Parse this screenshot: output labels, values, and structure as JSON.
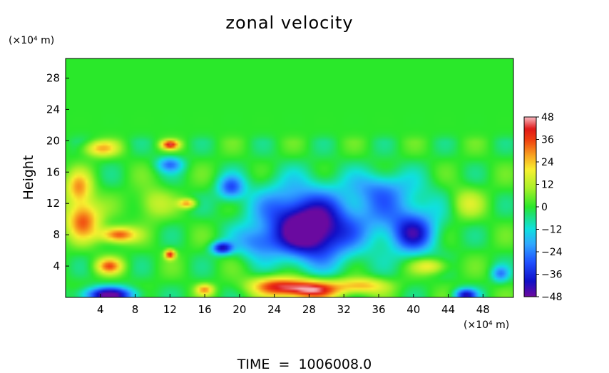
{
  "chart_data": {
    "type": "heatmap",
    "title": "zonal velocity",
    "ylabel": "Height",
    "y_unit": "(×10⁴ m)",
    "x_unit": "(×10⁴ m)",
    "footer": "TIME  =  1006008.0",
    "xlim": [
      0,
      51.5
    ],
    "ylim": [
      0,
      30.5
    ],
    "x_ticks": [
      4,
      8,
      12,
      16,
      20,
      24,
      28,
      32,
      36,
      40,
      44,
      48
    ],
    "y_ticks": [
      4,
      8,
      12,
      16,
      20,
      24,
      28
    ],
    "colorbar": {
      "min": -48,
      "max": 48,
      "ticks": [
        48,
        36,
        24,
        12,
        0,
        -12,
        -24,
        -36,
        -48
      ],
      "stops": [
        {
          "v": -48,
          "color": "#6a0aa0"
        },
        {
          "v": -40,
          "color": "#1010c8"
        },
        {
          "v": -30,
          "color": "#2050ff"
        },
        {
          "v": -20,
          "color": "#30a8ff"
        },
        {
          "v": -12,
          "color": "#10e0e0"
        },
        {
          "v": -4,
          "color": "#20e070"
        },
        {
          "v": 0,
          "color": "#2ae82a"
        },
        {
          "v": 10,
          "color": "#a8f028"
        },
        {
          "v": 20,
          "color": "#f8f030"
        },
        {
          "v": 28,
          "color": "#f8a020"
        },
        {
          "v": 36,
          "color": "#f04010"
        },
        {
          "v": 42,
          "color": "#e01818"
        },
        {
          "v": 48,
          "color": "#f8b0b8"
        }
      ]
    },
    "features": [
      {
        "x": 28,
        "y": 8,
        "sx": 4,
        "sy": 3.5,
        "v": -38
      },
      {
        "x": 26,
        "y": 11,
        "sx": 5,
        "sy": 4,
        "v": -24
      },
      {
        "x": 31,
        "y": 9,
        "sx": 5,
        "sy": 5,
        "v": -14
      },
      {
        "x": 22,
        "y": 7,
        "sx": 2.5,
        "sy": 2,
        "v": -20
      },
      {
        "x": 18,
        "y": 6.3,
        "sx": 1.2,
        "sy": 0.8,
        "v": -40
      },
      {
        "x": 40,
        "y": 8,
        "sx": 2.5,
        "sy": 2.5,
        "v": -30
      },
      {
        "x": 38,
        "y": 11,
        "sx": 5,
        "sy": 4,
        "v": -18
      },
      {
        "x": 36,
        "y": 14,
        "sx": 3,
        "sy": 2,
        "v": -14
      },
      {
        "x": 19,
        "y": 14,
        "sx": 1.5,
        "sy": 1.5,
        "v": -28
      },
      {
        "x": 12,
        "y": 17,
        "sx": 1.5,
        "sy": 1,
        "v": -24
      },
      {
        "x": 5,
        "y": 0.3,
        "sx": 3,
        "sy": 1,
        "v": -48
      },
      {
        "x": 46,
        "y": 0.3,
        "sx": 1.3,
        "sy": 0.8,
        "v": -40
      },
      {
        "x": 50,
        "y": 3,
        "sx": 1,
        "sy": 1,
        "v": -22
      },
      {
        "x": 28,
        "y": 1,
        "sx": 3.5,
        "sy": 1.2,
        "v": 46
      },
      {
        "x": 24,
        "y": 1.5,
        "sx": 3,
        "sy": 1.2,
        "v": 30
      },
      {
        "x": 34,
        "y": 1.5,
        "sx": 3,
        "sy": 1,
        "v": 26
      },
      {
        "x": 2,
        "y": 10,
        "sx": 2,
        "sy": 2.5,
        "v": 34
      },
      {
        "x": 6,
        "y": 8,
        "sx": 2,
        "sy": 1,
        "v": 38
      },
      {
        "x": 1.5,
        "y": 14,
        "sx": 1.5,
        "sy": 2,
        "v": 26
      },
      {
        "x": 5,
        "y": 4,
        "sx": 1.5,
        "sy": 1,
        "v": 30
      },
      {
        "x": 12,
        "y": 19.5,
        "sx": 1,
        "sy": 0.6,
        "v": 38
      },
      {
        "x": 12,
        "y": 5.5,
        "sx": 0.6,
        "sy": 0.6,
        "v": 40
      },
      {
        "x": 4,
        "y": 19,
        "sx": 2,
        "sy": 1,
        "v": 24
      },
      {
        "x": 14,
        "y": 12,
        "sx": 1,
        "sy": 0.6,
        "v": 28
      },
      {
        "x": 16,
        "y": 1,
        "sx": 1,
        "sy": 0.7,
        "v": 26
      },
      {
        "x": 42,
        "y": 4,
        "sx": 2,
        "sy": 1,
        "v": 20
      },
      {
        "x": 46,
        "y": 12,
        "sx": 2,
        "sy": 2,
        "v": 14
      },
      {
        "x": 10,
        "y": 12,
        "sx": 2,
        "sy": 2,
        "v": 14
      }
    ]
  }
}
